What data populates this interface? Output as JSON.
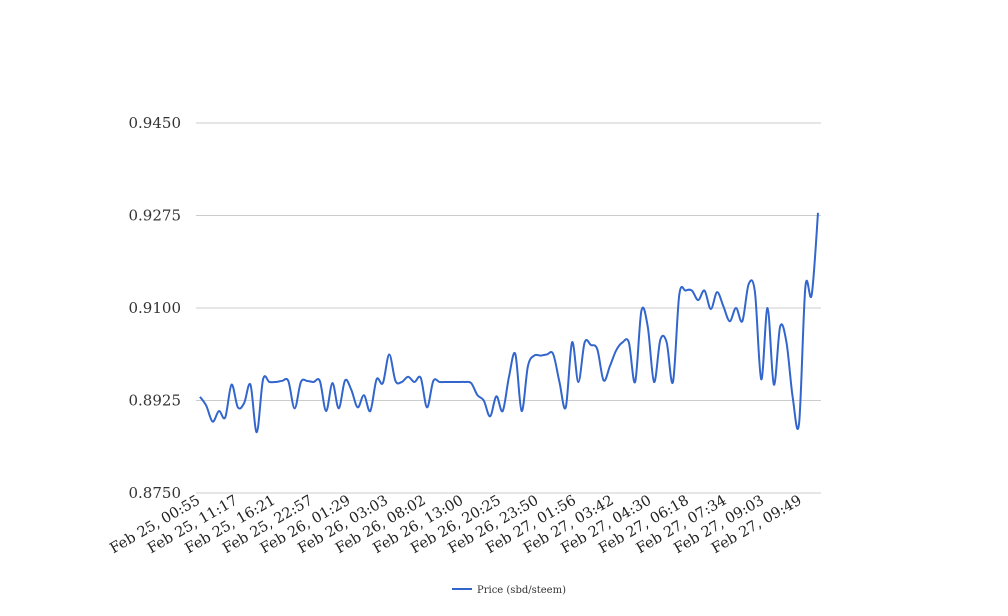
{
  "colors": {
    "series": "#3366cc",
    "grid": "#cccccc",
    "text": "#333333"
  },
  "chart_data": {
    "type": "line",
    "title": "",
    "xlabel": "",
    "ylabel": "",
    "ylim": [
      0.875,
      0.945
    ],
    "yticks": [
      "0.8750",
      "0.8925",
      "0.9100",
      "0.9275",
      "0.9450"
    ],
    "ytick_values": [
      0.875,
      0.8925,
      0.91,
      0.9275,
      0.945
    ],
    "grid": true,
    "legend_position": "bottom",
    "x_tick_labels": [
      "Feb 25, 00:55",
      "Feb 25, 11:17",
      "Feb 25, 16:21",
      "Feb 25, 22:57",
      "Feb 26, 01:29",
      "Feb 26, 03:03",
      "Feb 26, 08:02",
      "Feb 26, 13:00",
      "Feb 26, 20:25",
      "Feb 26, 23:50",
      "Feb 27, 01:56",
      "Feb 27, 03:42",
      "Feb 27, 04:30",
      "Feb 27, 06:18",
      "Feb 27, 07:34",
      "Feb 27, 09:03",
      "Feb 27, 09:49"
    ],
    "series": [
      {
        "name": "Price (sbd/steem)",
        "values": [
          0.8932,
          0.8915,
          0.8885,
          0.8905,
          0.8893,
          0.8955,
          0.8912,
          0.892,
          0.8955,
          0.8865,
          0.8965,
          0.896,
          0.896,
          0.8962,
          0.8962,
          0.891,
          0.896,
          0.8962,
          0.896,
          0.8962,
          0.8905,
          0.8958,
          0.891,
          0.8963,
          0.8945,
          0.8912,
          0.8935,
          0.8905,
          0.8965,
          0.8958,
          0.9012,
          0.8962,
          0.896,
          0.897,
          0.896,
          0.8968,
          0.8912,
          0.8962,
          0.896,
          0.896,
          0.896,
          0.896,
          0.896,
          0.8958,
          0.8935,
          0.8925,
          0.8895,
          0.8933,
          0.8905,
          0.897,
          0.9013,
          0.8905,
          0.899,
          0.901,
          0.901,
          0.9012,
          0.9013,
          0.896,
          0.8912,
          0.9035,
          0.896,
          0.9035,
          0.903,
          0.9022,
          0.8963,
          0.899,
          0.902,
          0.9035,
          0.9035,
          0.896,
          0.9095,
          0.9065,
          0.896,
          0.904,
          0.9035,
          0.896,
          0.9125,
          0.9133,
          0.9133,
          0.9115,
          0.9133,
          0.9098,
          0.913,
          0.9103,
          0.9075,
          0.91,
          0.9075,
          0.9145,
          0.913,
          0.8965,
          0.91,
          0.8955,
          0.9065,
          0.9035,
          0.893,
          0.8882,
          0.914,
          0.9125,
          0.928
        ]
      }
    ]
  }
}
